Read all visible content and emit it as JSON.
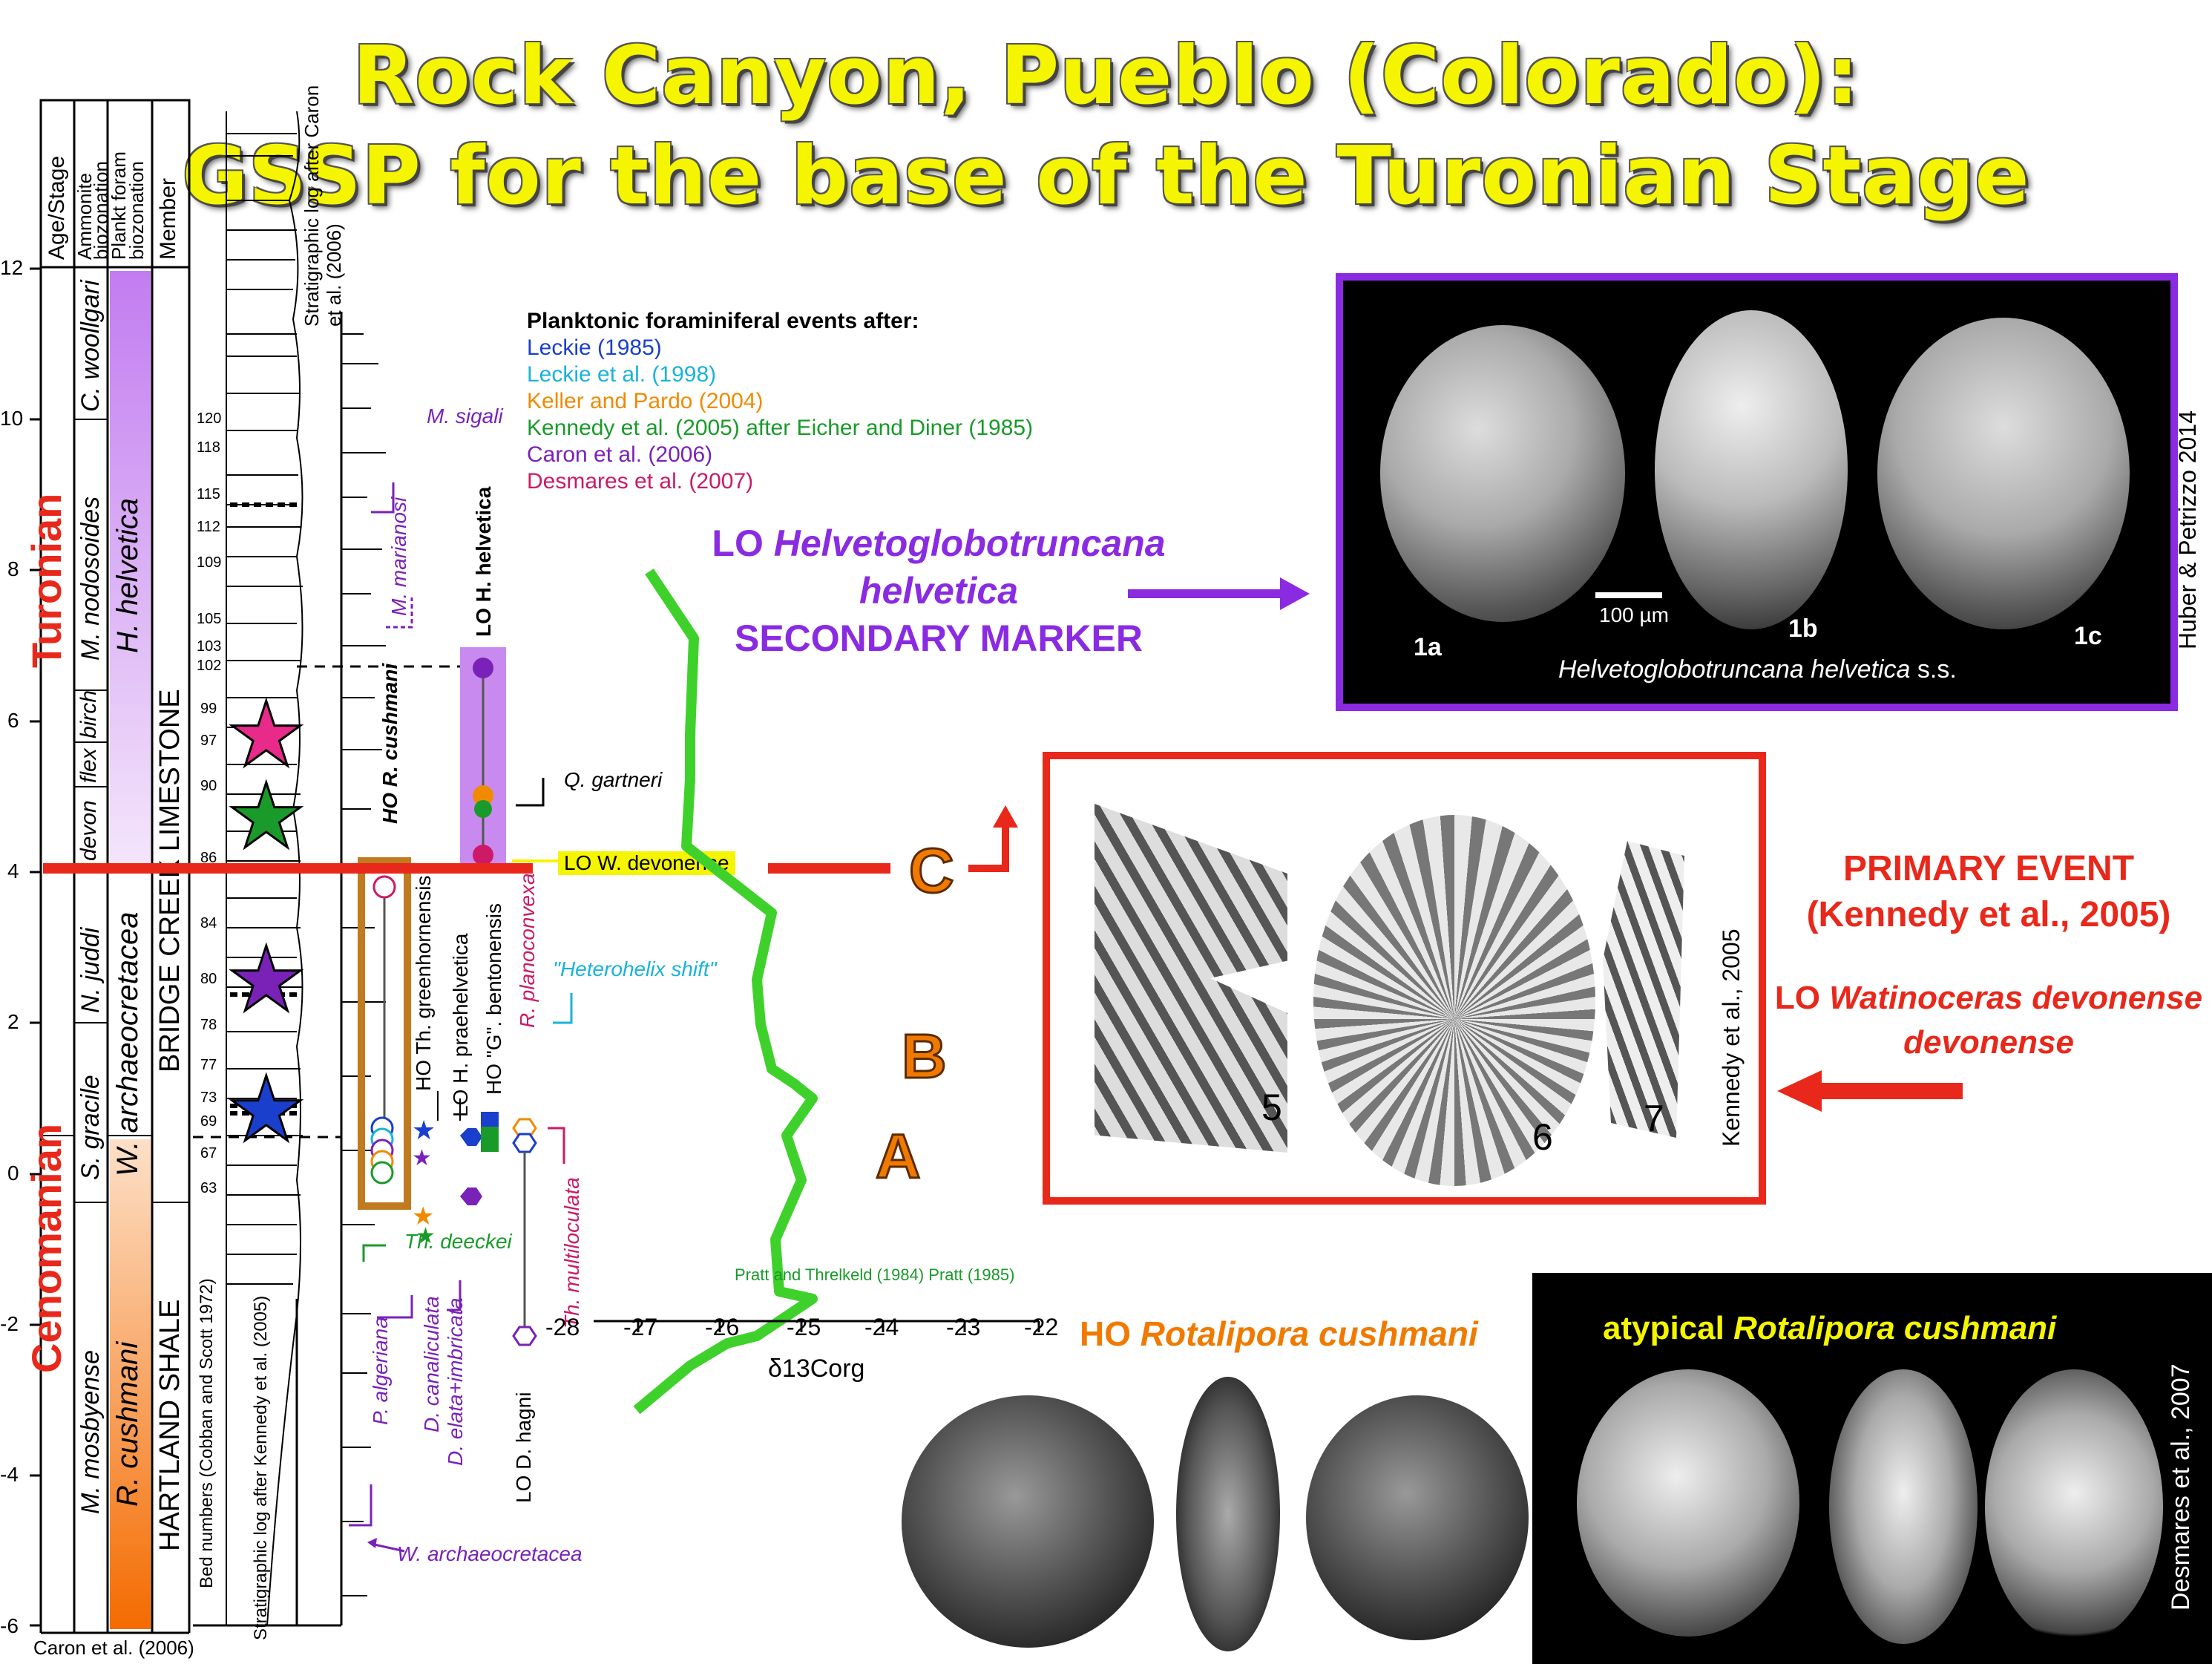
{
  "title": {
    "line1": "Rock Canyon, Pueblo (Colorado):",
    "line2": "GSSP for the base of the Turonian Stage"
  },
  "column_headers": {
    "age_stage": "Age/Stage",
    "ammonite": "Ammonite biozonation",
    "plankt": "Plankt foram biozonation",
    "member": "Member",
    "strat_log": "Stratigraphic log after Caron et al. (2006)"
  },
  "y_ticks": [
    "12",
    "10",
    "8",
    "6",
    "4",
    "2",
    "0",
    "-2",
    "-4",
    "-6"
  ],
  "stages": {
    "turonian": "Turonian",
    "cenomanian": "Cenomanian"
  },
  "ammonite_zones": [
    "C. woollgari",
    "M. nodosoides",
    "birch",
    "flex",
    "devon",
    "N. juddi",
    "S. gracile",
    "M. mosbyense"
  ],
  "foram_zones": [
    "H. helvetica",
    "W. archaeocretacea",
    "R. cushmani"
  ],
  "members": [
    "BRIDGE CREEK LIMESTONE",
    "HARTLAND SHALE"
  ],
  "bed_numbers": [
    "120",
    "118",
    "115",
    "112",
    "109",
    "105",
    "103",
    "102",
    "99",
    "97",
    "90",
    "86",
    "84",
    "80",
    "78",
    "77",
    "73",
    "69",
    "67",
    "63"
  ],
  "bed_label": "Bed numbers (Cobban and Scott 1972)",
  "strat_label": "Stratigraphic log after Kennedy et al. (2005)",
  "caron_credit": "Caron et al. (2006)",
  "legend": {
    "heading": "Planktonic foraminiferal events after:",
    "entries": [
      {
        "text": "Leckie (1985)",
        "color": "#1a3fcc"
      },
      {
        "text": "Leckie et al. (1998)",
        "color": "#19b3d9"
      },
      {
        "text": "Keller and Pardo (2004)",
        "color": "#f08a00"
      },
      {
        "text": "Kennedy et al. (2005) after Eicher and Diner (1985)",
        "color": "#1a9a2a"
      },
      {
        "text": "Caron et al. (2006)",
        "color": "#7a22b8"
      },
      {
        "text": "Desmares et al. (2007)",
        "color": "#cc1a66"
      }
    ]
  },
  "events": {
    "m_sigali": "M. sigali",
    "m_marianosi": "M. marianosi",
    "lo_h_helvetica": "LO H. helvetica",
    "ho_r_cushmani": "HO R. cushmani",
    "ho_th_greenhornensis": "HO Th. greenhornensis",
    "lo_h_praehelvetica": "LO H. praehelvetica",
    "ho_g_bentonensis": "HO \"G\". bentonensis",
    "r_planoconvexa": "R. planoconvexa",
    "q_gartneri": "Q. gartneri",
    "lo_w_devonense": "LO W. devonense",
    "heterohelix": "\"Heterohelix shift\"",
    "th_deeckei": "Th. deeckei",
    "th_multiloculata": "Th. multiloculata",
    "p_algeriana": "P. algeriana",
    "d_canaliculata": "D. canaliculata",
    "d_elata": "D. elata+imbricata",
    "lo_d_hagni": "LO D. hagni",
    "w_archaeocretacea": "W. archaeocretacea"
  },
  "carbon_curve": {
    "x_ticks": [
      "-28",
      "-27",
      "-26",
      "-25",
      "-24",
      "-23",
      "-22"
    ],
    "xlabel": "δ13Corg",
    "credit": "Pratt and Threlkeld (1984) Pratt (1985)",
    "markers": [
      "A",
      "B",
      "C"
    ],
    "color": "#3fd12b"
  },
  "secondary": {
    "line1_prefix": "LO ",
    "line1_italic": "Helvetoglobotruncana",
    "line2_italic": "helvetica",
    "line3": "SECONDARY MARKER",
    "color": "#8a2be2"
  },
  "helvetica_image": {
    "scale": "100 µm",
    "labels": [
      "1a",
      "1b",
      "1c"
    ],
    "caption_italic": "Helvetoglobotruncana helvetica",
    "caption_suffix": " s.s.",
    "credit": "Huber & Petrizzo 2014",
    "border_color": "#8a2be2"
  },
  "ammonite_image": {
    "labels": [
      "5",
      "6",
      "7"
    ],
    "credit": "Kennedy et al., 2005",
    "border_color": "#e8281a"
  },
  "primary": {
    "line1": "PRIMARY EVENT",
    "line2": "(Kennedy et al., 2005)",
    "line3_prefix": "LO ",
    "line3_italic": "Watinoceras devonense",
    "line4_italic": "devonense",
    "color": "#e8281a"
  },
  "cushmani": {
    "prefix": "HO ",
    "italic": "Rotalipora cushmani",
    "color": "#f07a00"
  },
  "atypical": {
    "prefix": "atypical ",
    "italic": "Rotalipora cushmani",
    "credit": "Desmares et al., 2007",
    "color": "#f5f500"
  }
}
